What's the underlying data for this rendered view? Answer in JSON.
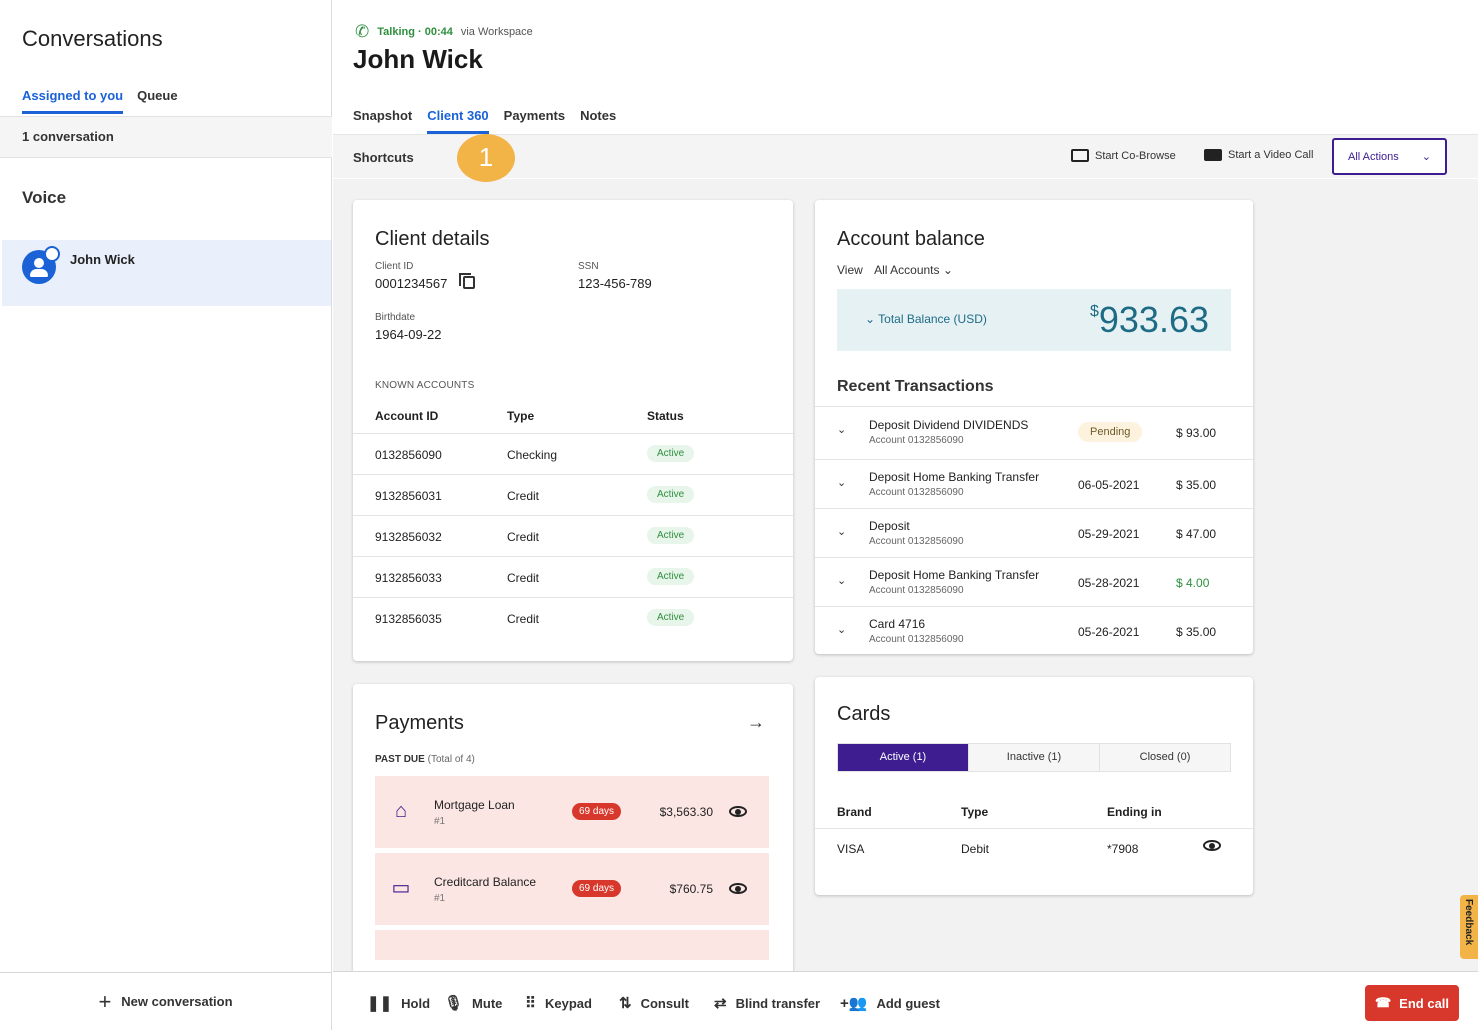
{
  "left": {
    "title": "Conversations",
    "tabs": [
      "Assigned to you",
      "Queue"
    ],
    "count": "1 conversation",
    "section": "Voice",
    "conversation": {
      "name": "John Wick"
    },
    "new_conversation": "New conversation"
  },
  "header": {
    "status": "Talking · 00:44",
    "via": "via Workspace",
    "caller": "John Wick",
    "tabs": [
      "Snapshot",
      "Client 360",
      "Payments",
      "Notes"
    ],
    "active_tab": "Client 360"
  },
  "shortcuts": {
    "label": "Shortcuts",
    "step": "1",
    "cobrowse": "Start Co-Browse",
    "video": "Start a Video Call",
    "all_actions": "All Actions"
  },
  "client": {
    "title": "Client details",
    "client_id_label": "Client ID",
    "client_id": "0001234567",
    "ssn_label": "SSN",
    "ssn": "123-456-789",
    "birthdate_label": "Birthdate",
    "birthdate": "1964-09-22",
    "known_label": "KNOWN ACCOUNTS",
    "headers": [
      "Account ID",
      "Type",
      "Status"
    ],
    "accounts": [
      {
        "id": "0132856090",
        "type": "Checking",
        "status": "Active"
      },
      {
        "id": "9132856031",
        "type": "Credit",
        "status": "Active"
      },
      {
        "id": "9132856032",
        "type": "Credit",
        "status": "Active"
      },
      {
        "id": "9132856033",
        "type": "Credit",
        "status": "Active"
      },
      {
        "id": "9132856035",
        "type": "Credit",
        "status": "Active"
      }
    ]
  },
  "balance": {
    "title": "Account balance",
    "view_label": "View",
    "view_value": "All Accounts",
    "total_label": "Total Balance (USD)",
    "currency": "$",
    "total": "933.63",
    "recent_title": "Recent Transactions",
    "transactions": [
      {
        "title": "Deposit Dividend DIVIDENDS",
        "account": "Account 0132856090",
        "date": "",
        "badge": "Pending",
        "amount": "$ 93.00"
      },
      {
        "title": "Deposit Home Banking Transfer",
        "account": "Account 0132856090",
        "date": "06-05-2021",
        "badge": "",
        "amount": "$ 35.00"
      },
      {
        "title": "Deposit",
        "account": "Account 0132856090",
        "date": "05-29-2021",
        "badge": "",
        "amount": "$ 47.00"
      },
      {
        "title": "Deposit Home Banking Transfer",
        "account": "Account 0132856090",
        "date": "05-28-2021",
        "badge": "",
        "amount": "$ 4.00"
      },
      {
        "title": "Card 4716",
        "account": "Account 0132856090",
        "date": "05-26-2021",
        "badge": "",
        "amount": "$ 35.00"
      }
    ]
  },
  "payments": {
    "title": "Payments",
    "past_due": "PAST DUE",
    "past_due_total": "(Total of 4)",
    "items": [
      {
        "name": "Mortgage Loan",
        "sub": "#1",
        "days": "69 days",
        "amount": "$3,563.30"
      },
      {
        "name": "Creditcard Balance",
        "sub": "#1",
        "days": "69 days",
        "amount": "$760.75"
      }
    ]
  },
  "cards": {
    "title": "Cards",
    "tabs": [
      "Active (1)",
      "Inactive (1)",
      "Closed (0)"
    ],
    "headers": [
      "Brand",
      "Type",
      "Ending in"
    ],
    "rows": [
      {
        "brand": "VISA",
        "type": "Debit",
        "ending": "*7908"
      }
    ]
  },
  "feedback": "Feedback",
  "controls": {
    "hold": "Hold",
    "mute": "Mute",
    "keypad": "Keypad",
    "consult": "Consult",
    "blind_transfer": "Blind transfer",
    "add_guest": "Add guest",
    "end_call": "End call"
  }
}
